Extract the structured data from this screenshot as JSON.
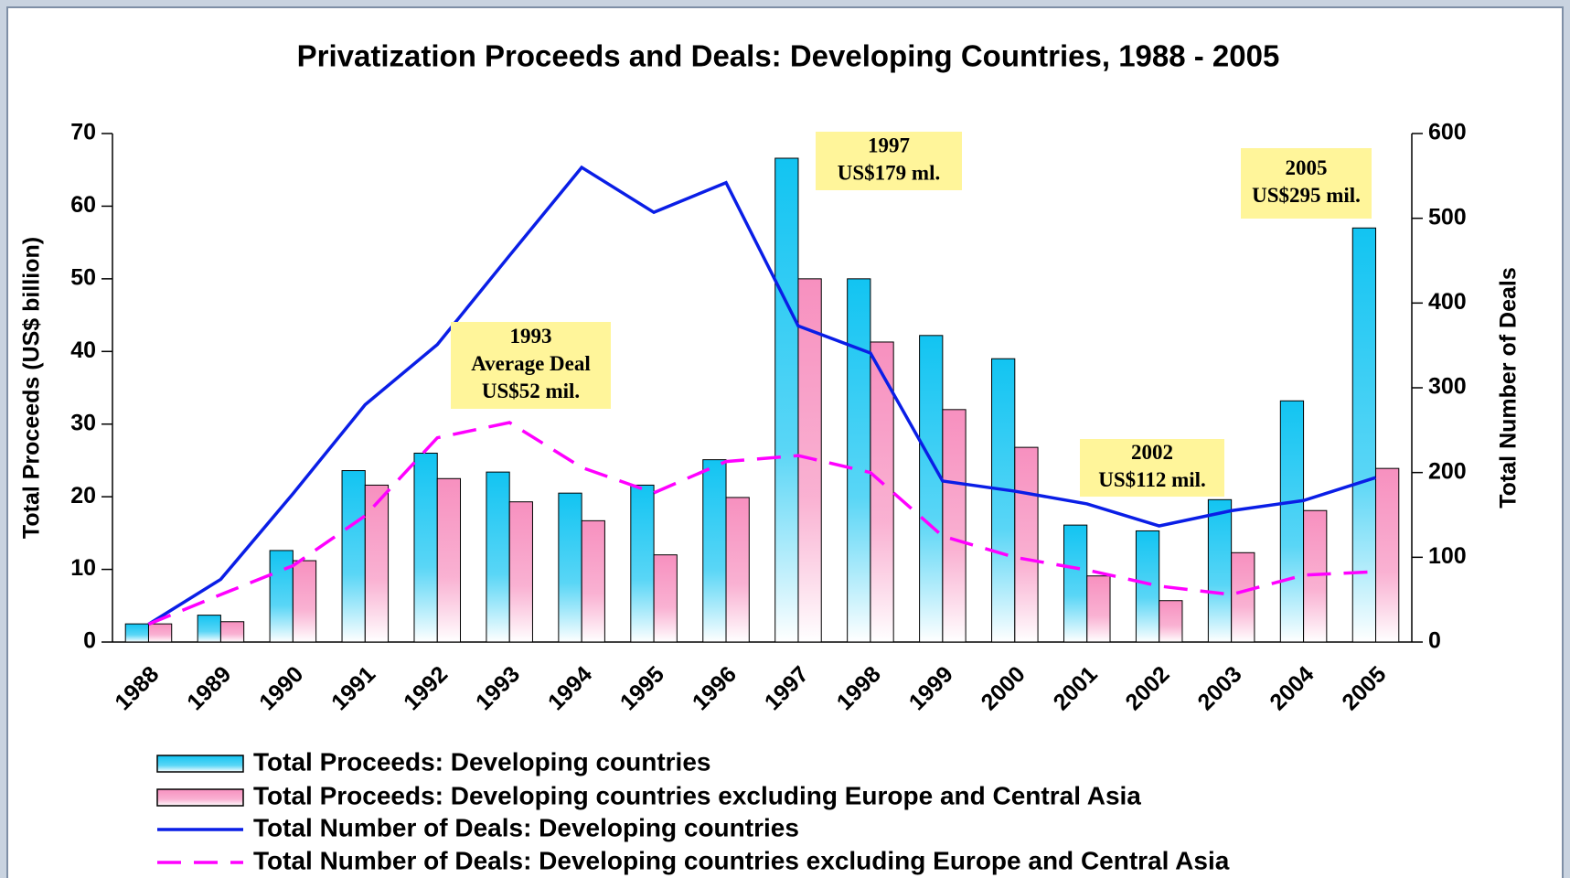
{
  "chart_data": {
    "type": "bar_line",
    "title": "Privatization Proceeds and Deals: Developing Countries, 1988 - 2005",
    "y_label": "Total Proceeds (US$ billion)",
    "y2_label": "Total Number of Deals",
    "categories": [
      "1988",
      "1989",
      "1990",
      "1991",
      "1992",
      "1993",
      "1994",
      "1995",
      "1996",
      "1997",
      "1998",
      "1999",
      "2000",
      "2001",
      "2002",
      "2003",
      "2004",
      "2005"
    ],
    "ylim": [
      0,
      70
    ],
    "yticks": [
      0,
      10,
      20,
      30,
      40,
      50,
      60,
      70
    ],
    "y2lim": [
      0,
      600
    ],
    "y2ticks": [
      0,
      100,
      200,
      300,
      400,
      500,
      600
    ],
    "series": [
      {
        "name": "Total Proceeds: Developing countries",
        "type": "bar",
        "color": "#12c4f2",
        "values": [
          2.5,
          3.7,
          12.6,
          23.6,
          26.0,
          23.4,
          20.5,
          21.6,
          25.1,
          66.6,
          50.0,
          42.2,
          39.0,
          16.1,
          15.3,
          19.6,
          33.2,
          57.0
        ]
      },
      {
        "name": "Total Proceeds: Developing countries excluding Europe and Central Asia",
        "type": "bar",
        "color": "#f790bf",
        "values": [
          2.5,
          2.8,
          11.2,
          21.6,
          22.5,
          19.3,
          16.7,
          12.0,
          19.9,
          50.0,
          41.3,
          32.0,
          26.8,
          9.1,
          5.7,
          12.3,
          18.1,
          23.9
        ]
      },
      {
        "name": "Total Number of Deals: Developing countries",
        "type": "line",
        "axis": "y2",
        "color": "#0a1ee6",
        "dash": false,
        "values": [
          21,
          74,
          175,
          280,
          351,
          456,
          560,
          507,
          542,
          373,
          341,
          190,
          178,
          163,
          137,
          155,
          167,
          194
        ]
      },
      {
        "name": "Total Number of Deals: Developing countries excluding Europe and Central Asia",
        "type": "line",
        "axis": "y2",
        "color": "#ff00ff",
        "dash": true,
        "values": [
          21,
          56,
          90,
          149,
          241,
          259,
          206,
          176,
          213,
          220,
          200,
          125,
          100,
          85,
          66,
          56,
          79,
          83
        ]
      }
    ],
    "annotations": [
      {
        "lines": [
          "1993",
          "Average Deal",
          "US$52 mil."
        ]
      },
      {
        "lines": [
          "1997",
          "US$179 ml."
        ]
      },
      {
        "lines": [
          "2002",
          "US$112 mil."
        ]
      },
      {
        "lines": [
          "2005",
          "US$295 mil."
        ]
      }
    ]
  }
}
